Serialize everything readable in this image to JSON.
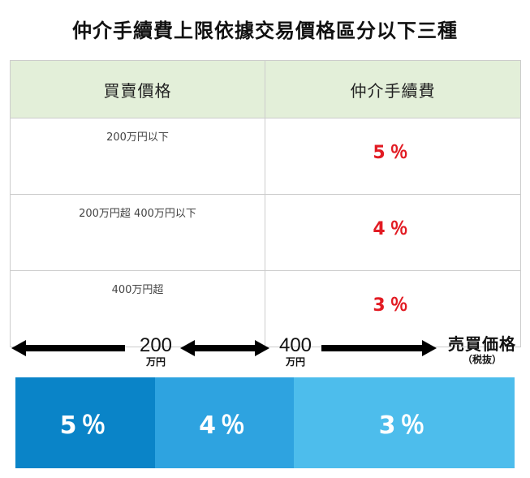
{
  "title": "仲介手續費上限依據交易價格區分以下三種",
  "table": {
    "headers": [
      "買賣價格",
      "仲介手續費"
    ],
    "rows": [
      {
        "price": "200万円以下",
        "rate": "5％"
      },
      {
        "price": "200万円超 400万円以下",
        "rate": "4％"
      },
      {
        "price": "400万円超",
        "rate": "3％"
      }
    ]
  },
  "diagram": {
    "ticks": [
      {
        "value": "200",
        "unit": "万円"
      },
      {
        "value": "400",
        "unit": "万円"
      }
    ],
    "axis_label": "売買価格",
    "axis_sublabel": "（税抜）",
    "segments": [
      {
        "label": "5％",
        "color": "#0a84c8"
      },
      {
        "label": "4％",
        "color": "#2ea3e0"
      },
      {
        "label": "3％",
        "color": "#4dbdec"
      }
    ]
  },
  "colors": {
    "header_bg": "#e3efd9",
    "rate_text": "#e21b23",
    "border": "#cccccc"
  }
}
